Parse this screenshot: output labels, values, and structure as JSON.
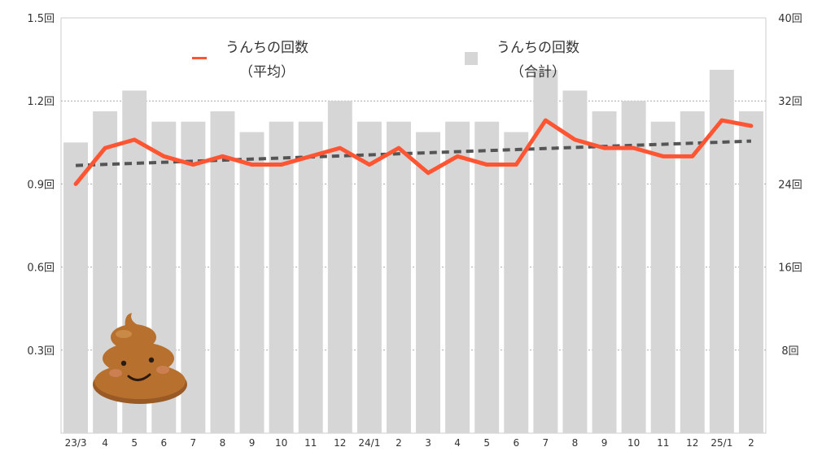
{
  "chart_data": {
    "type": "bar",
    "categories": [
      "23/3",
      "4",
      "5",
      "6",
      "7",
      "8",
      "9",
      "10",
      "11",
      "12",
      "24/1",
      "2",
      "3",
      "4",
      "5",
      "6",
      "7",
      "8",
      "9",
      "10",
      "11",
      "12",
      "25/1",
      "2"
    ],
    "series": [
      {
        "name": "うんちの回数（合計）",
        "legend_line1": "うんちの回数",
        "legend_line2": "（合計）",
        "type": "bar",
        "axis": "right",
        "color": "#d6d6d6",
        "values": [
          28,
          31,
          33,
          30,
          30,
          31,
          29,
          30,
          30,
          32,
          30,
          30,
          29,
          30,
          30,
          29,
          35,
          33,
          31,
          32,
          30,
          31,
          35,
          31
        ]
      },
      {
        "name": "うんちの回数（平均）",
        "legend_line1": "うんちの回数",
        "legend_line2": "（平均）",
        "type": "line",
        "axis": "left",
        "color": "#ff5533",
        "values": [
          0.9,
          1.03,
          1.06,
          1.0,
          0.97,
          1.0,
          0.97,
          0.97,
          1.0,
          1.03,
          0.97,
          1.03,
          0.94,
          1.0,
          0.97,
          0.97,
          1.13,
          1.06,
          1.03,
          1.03,
          1.0,
          1.0,
          1.13,
          1.11
        ]
      }
    ],
    "trendline": {
      "style": "dashed",
      "color": "#555555",
      "start": 0.967,
      "end": 1.055
    },
    "left_axis": {
      "ylim": [
        0,
        1.5
      ],
      "ticks": [
        "0.3回",
        "0.6回",
        "0.9回",
        "1.2回",
        "1.5回"
      ],
      "tick_values": [
        0.3,
        0.6,
        0.9,
        1.2,
        1.5
      ]
    },
    "right_axis": {
      "ylim": [
        0,
        40
      ],
      "ticks": [
        "8回",
        "16回",
        "24回",
        "32回",
        "40回"
      ],
      "tick_values": [
        8,
        16,
        24,
        32,
        40
      ]
    },
    "grid": true,
    "legend_position": "top",
    "decoration": "poop-icon"
  }
}
